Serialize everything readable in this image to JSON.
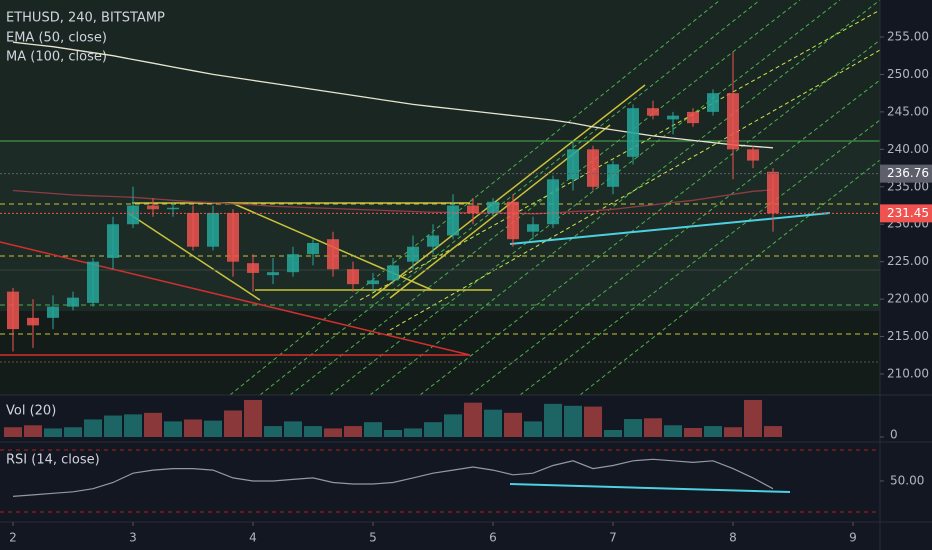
{
  "chart_data": {
    "type": "candlestick",
    "title": "ETHUSD, 240, BITSTAMP",
    "xticks": [
      {
        "value": 0,
        "label": "2"
      },
      {
        "value": 6,
        "label": "3"
      },
      {
        "value": 12,
        "label": "4"
      },
      {
        "value": 18,
        "label": "5"
      },
      {
        "value": 24,
        "label": "6"
      },
      {
        "value": 30,
        "label": "7"
      },
      {
        "value": 36,
        "label": "8"
      },
      {
        "value": 42,
        "label": "9"
      }
    ],
    "xlim": [
      -0.65,
      43.35
    ],
    "ylim": [
      207.2,
      259.94
    ],
    "yticks": [
      {
        "value": 210,
        "label": "210.00"
      },
      {
        "value": 215,
        "label": "215.00"
      },
      {
        "value": 220,
        "label": "220.00"
      },
      {
        "value": 225,
        "label": "225.00"
      },
      {
        "value": 230,
        "label": "230.00"
      },
      {
        "value": 235,
        "label": "235.00"
      },
      {
        "value": 240,
        "label": "240.00"
      },
      {
        "value": 245,
        "label": "245.00"
      },
      {
        "value": 250,
        "label": "250.00"
      },
      {
        "value": 255,
        "label": "255.00"
      }
    ],
    "up_color": "#26a69a",
    "down_color": "#ef5350",
    "open": [
      221,
      217.5,
      217.5,
      219,
      219.5,
      225.5,
      230,
      232.5,
      232,
      231.5,
      227,
      231.5,
      224.8,
      223.2,
      223.6,
      226,
      228,
      224,
      222,
      222.5,
      225,
      227,
      228.5,
      232.5,
      231.5,
      233,
      229,
      230,
      236,
      240,
      235,
      239,
      245.5,
      244,
      245,
      245,
      247.5,
      240,
      237
    ],
    "high": [
      221.5,
      220,
      220.5,
      221,
      225.5,
      231,
      235,
      233.5,
      233,
      232.5,
      232.5,
      232,
      226,
      225.5,
      227,
      228,
      229,
      225,
      223.5,
      225.5,
      228.5,
      230,
      234,
      233.5,
      233.5,
      234,
      231,
      236.5,
      241,
      240.5,
      238.5,
      246,
      246.5,
      245,
      245.5,
      248,
      253,
      240.5,
      237.5
    ],
    "low": [
      213,
      213.5,
      216,
      218.5,
      219,
      224,
      229.5,
      231,
      231,
      226.5,
      226.5,
      223,
      221,
      222,
      223,
      224.5,
      223,
      221,
      221,
      222,
      224,
      226,
      228,
      230,
      231,
      227,
      228,
      229.5,
      234.5,
      234.5,
      234,
      238,
      244,
      242,
      243,
      244.5,
      236,
      237.5,
      229
    ],
    "close": [
      216,
      216.5,
      219,
      220.2,
      225,
      230,
      232.5,
      232,
      232.2,
      227,
      231.5,
      225,
      223.5,
      223.6,
      226,
      227.5,
      224,
      222,
      222.5,
      224.5,
      227,
      228.5,
      232.5,
      231.5,
      233,
      228,
      230,
      236,
      240,
      235,
      238,
      245.5,
      244.5,
      244.5,
      243.5,
      247.5,
      240,
      238.5,
      231.45
    ],
    "overlays": [
      {
        "name": "EMA (50, close)",
        "color": "#8e3b46",
        "values": [
          234.5,
          234.3,
          234.1,
          233.9,
          233.8,
          233.7,
          233.6,
          233.4,
          233.2,
          233.0,
          232.9,
          232.7,
          232.6,
          232.4,
          232.3,
          232.2,
          232.1,
          232.0,
          231.9,
          231.8,
          231.7,
          231.6,
          231.6,
          231.5,
          231.5,
          231.5,
          231.4,
          231.5,
          231.7,
          231.8,
          232.0,
          232.3,
          232.6,
          232.9,
          233.2,
          233.6,
          234.0,
          234.4,
          234.6
        ]
      },
      {
        "name": "MA (100, close)",
        "color": "#e8e4d0",
        "values": [
          254.3,
          254.0,
          253.7,
          253.3,
          252.9,
          252.5,
          252.0,
          251.5,
          251.0,
          250.5,
          250.0,
          249.6,
          249.2,
          248.8,
          248.4,
          248.0,
          247.6,
          247.2,
          246.8,
          246.4,
          246.0,
          245.7,
          245.4,
          245.1,
          244.8,
          244.5,
          244.2,
          243.9,
          243.5,
          243.0,
          242.6,
          242.2,
          241.8,
          241.5,
          241.2,
          240.9,
          240.6,
          240.4,
          240.2
        ]
      }
    ],
    "price_lines": [
      {
        "value": 236.76,
        "color": "#5d606b"
      },
      {
        "value": 231.45,
        "color": "#ef5350"
      }
    ],
    "volume": {
      "title": "Vol (20)",
      "ylim": [
        0,
        100
      ],
      "yticks": [
        0
      ],
      "values": [
        25,
        30,
        22,
        25,
        45,
        55,
        58,
        62,
        40,
        45,
        42,
        68,
        95,
        28,
        40,
        28,
        22,
        28,
        38,
        18,
        22,
        38,
        58,
        88,
        70,
        62,
        40,
        85,
        80,
        78,
        18,
        46,
        48,
        30,
        23,
        28,
        25,
        95,
        28
      ]
    },
    "rsi": {
      "title": "RSI (14, close)",
      "color": "#9598a1",
      "ylim": [
        24.8,
        73.2
      ],
      "yticks": [
        {
          "value": 50,
          "label": "50.00"
        }
      ],
      "levels": [
        70,
        30
      ],
      "values": [
        40,
        41,
        42,
        43,
        45,
        49,
        55,
        57,
        58,
        58,
        57,
        52,
        50,
        50,
        51,
        52,
        49,
        48,
        48,
        49,
        52,
        55,
        57,
        59,
        57,
        54,
        55,
        60,
        63,
        58,
        60,
        63,
        64,
        63,
        62,
        63,
        58,
        52,
        45
      ]
    }
  }
}
